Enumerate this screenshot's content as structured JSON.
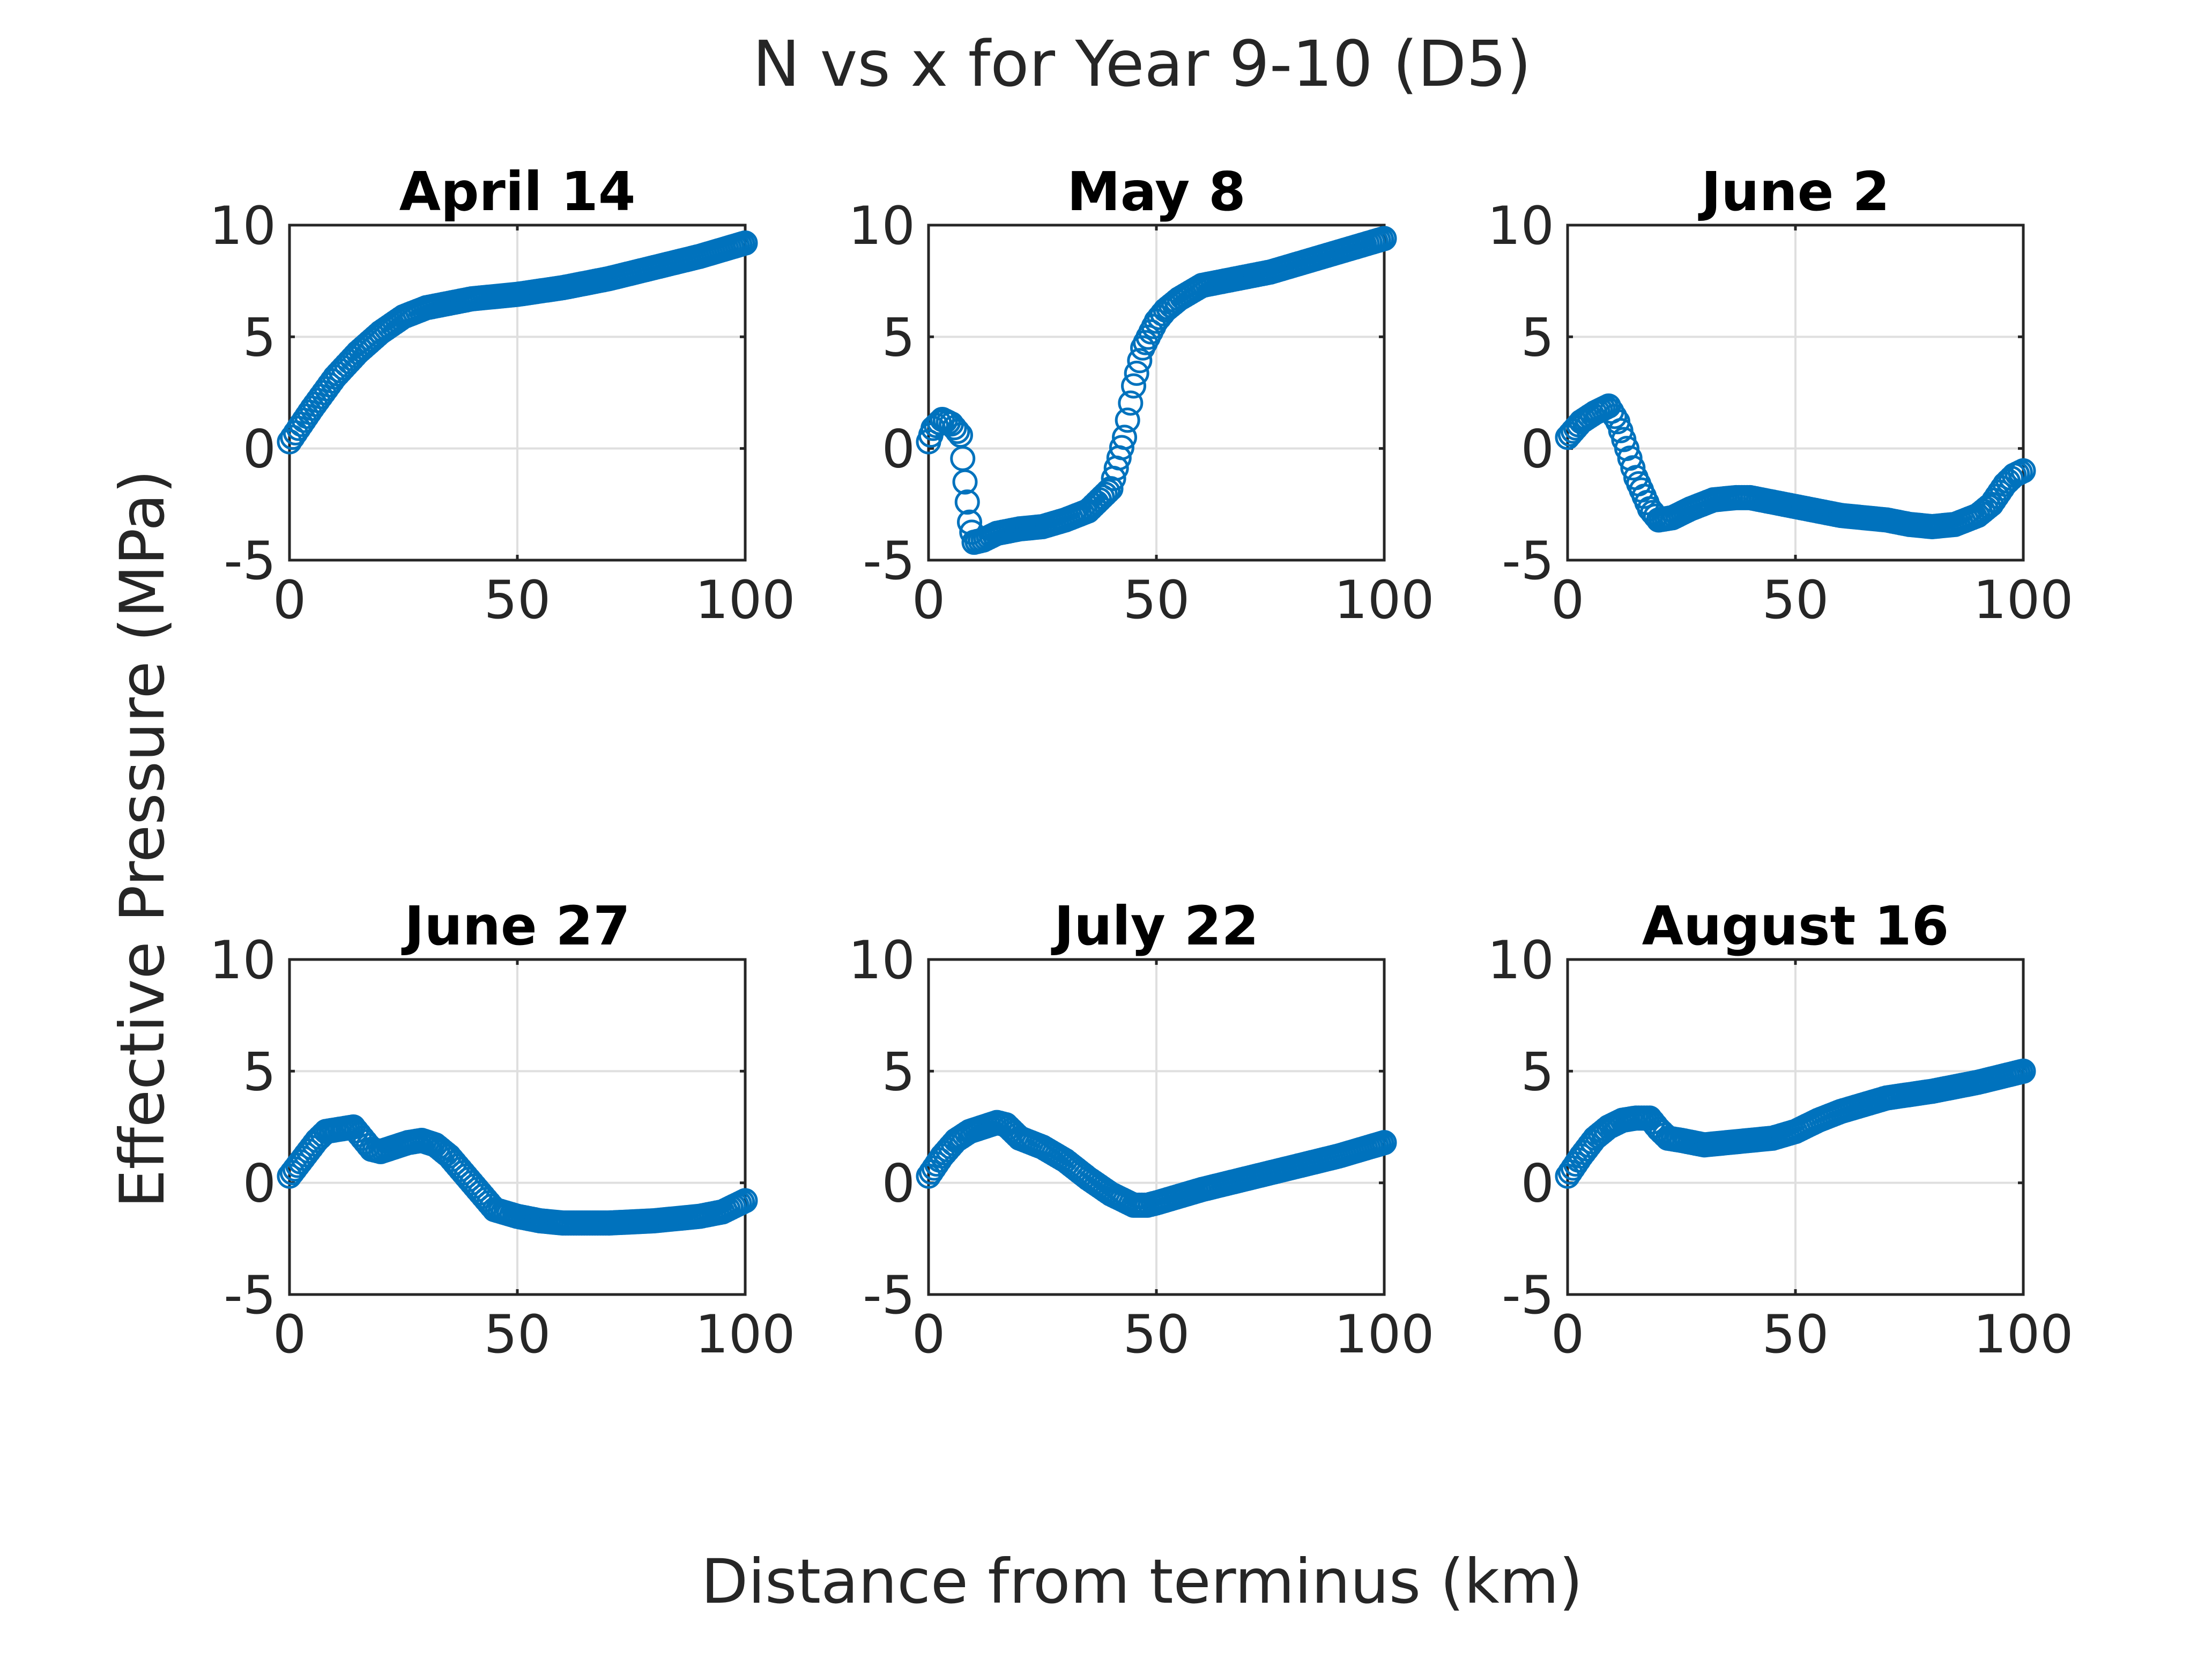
{
  "figure": {
    "suptitle": "N vs x for Year 9-10 (D5)",
    "xlabel": "Distance from terminus (km)",
    "ylabel": "Effective Pressure (MPa)"
  },
  "colors": {
    "series": "#0072BD"
  },
  "chart_data": [
    {
      "type": "scatter",
      "title": "April 14",
      "xlim": [
        0,
        100
      ],
      "ylim": [
        -5,
        10
      ],
      "xticks": [
        0,
        50,
        100
      ],
      "yticks": [
        -5,
        0,
        5,
        10
      ],
      "xtick_labels": [
        "0",
        "50",
        "100"
      ],
      "ytick_labels": [
        "-5",
        "0",
        "5",
        "10"
      ],
      "grid": true,
      "series": [
        {
          "marker": "circle",
          "x": [
            0,
            2,
            5,
            10,
            15,
            20,
            25,
            30,
            35,
            40,
            50,
            60,
            70,
            80,
            90,
            100
          ],
          "y": [
            0.3,
            0.9,
            1.8,
            3.2,
            4.3,
            5.2,
            5.9,
            6.3,
            6.5,
            6.7,
            6.9,
            7.2,
            7.6,
            8.1,
            8.6,
            9.2
          ]
        }
      ]
    },
    {
      "type": "scatter",
      "title": "May 8",
      "xlim": [
        0,
        100
      ],
      "ylim": [
        -5,
        10
      ],
      "xticks": [
        0,
        50,
        100
      ],
      "yticks": [
        -5,
        0,
        5,
        10
      ],
      "xtick_labels": [
        "0",
        "50",
        "100"
      ],
      "ytick_labels": [
        "-5",
        "0",
        "5",
        "10"
      ],
      "grid": true,
      "series": [
        {
          "marker": "circle",
          "x": [
            0,
            1,
            3,
            5,
            7,
            8,
            9,
            10,
            12,
            15,
            20,
            25,
            30,
            35,
            40,
            43,
            45,
            47,
            50,
            52,
            55,
            60,
            65,
            70,
            75,
            80,
            85,
            90,
            95,
            100
          ],
          "y": [
            0.3,
            0.9,
            1.3,
            1.1,
            0.6,
            -1.5,
            -3.3,
            -4.2,
            -4.1,
            -3.8,
            -3.6,
            -3.5,
            -3.2,
            -2.8,
            -1.8,
            0.5,
            2.8,
            4.5,
            5.7,
            6.2,
            6.7,
            7.3,
            7.5,
            7.7,
            7.9,
            8.2,
            8.5,
            8.8,
            9.1,
            9.4
          ]
        }
      ]
    },
    {
      "type": "scatter",
      "title": "June 2",
      "xlim": [
        0,
        100
      ],
      "ylim": [
        -5,
        10
      ],
      "xticks": [
        0,
        50,
        100
      ],
      "yticks": [
        -5,
        0,
        5,
        10
      ],
      "xtick_labels": [
        "0",
        "50",
        "100"
      ],
      "ytick_labels": [
        "-5",
        "0",
        "5",
        "10"
      ],
      "grid": true,
      "series": [
        {
          "marker": "circle",
          "x": [
            0,
            3,
            6,
            9,
            11,
            13,
            15,
            18,
            20,
            23,
            27,
            32,
            37,
            40,
            45,
            50,
            55,
            60,
            65,
            70,
            75,
            80,
            85,
            90,
            93,
            96,
            98,
            100
          ],
          "y": [
            0.5,
            1.2,
            1.6,
            1.9,
            1.2,
            0.0,
            -1.3,
            -2.7,
            -3.2,
            -3.1,
            -2.7,
            -2.3,
            -2.2,
            -2.2,
            -2.4,
            -2.6,
            -2.8,
            -3.0,
            -3.1,
            -3.2,
            -3.4,
            -3.5,
            -3.4,
            -3.0,
            -2.5,
            -1.6,
            -1.2,
            -1.0
          ]
        }
      ]
    },
    {
      "type": "scatter",
      "title": "June 27",
      "xlim": [
        0,
        100
      ],
      "ylim": [
        -5,
        10
      ],
      "xticks": [
        0,
        50,
        100
      ],
      "yticks": [
        -5,
        0,
        5,
        10
      ],
      "xtick_labels": [
        "0",
        "50",
        "100"
      ],
      "ytick_labels": [
        "-5",
        "0",
        "5",
        "10"
      ],
      "grid": true,
      "series": [
        {
          "marker": "circle",
          "x": [
            0,
            3,
            6,
            8,
            11,
            14,
            16,
            18,
            20,
            23,
            26,
            29,
            32,
            35,
            40,
            45,
            50,
            55,
            60,
            70,
            80,
            90,
            95,
            100
          ],
          "y": [
            0.3,
            1.1,
            1.9,
            2.3,
            2.4,
            2.5,
            2.0,
            1.5,
            1.4,
            1.6,
            1.8,
            1.9,
            1.7,
            1.2,
            0.0,
            -1.2,
            -1.5,
            -1.7,
            -1.8,
            -1.8,
            -1.7,
            -1.5,
            -1.3,
            -0.8
          ]
        }
      ]
    },
    {
      "type": "scatter",
      "title": "July 22",
      "xlim": [
        0,
        100
      ],
      "ylim": [
        -5,
        10
      ],
      "xticks": [
        0,
        50,
        100
      ],
      "yticks": [
        -5,
        0,
        5,
        10
      ],
      "xtick_labels": [
        "0",
        "50",
        "100"
      ],
      "ytick_labels": [
        "-5",
        "0",
        "5",
        "10"
      ],
      "grid": true,
      "series": [
        {
          "marker": "circle",
          "x": [
            0,
            3,
            6,
            9,
            12,
            15,
            17,
            20,
            25,
            30,
            35,
            40,
            45,
            48,
            50,
            55,
            60,
            70,
            80,
            90,
            100
          ],
          "y": [
            0.3,
            1.2,
            1.9,
            2.3,
            2.5,
            2.7,
            2.6,
            2.0,
            1.6,
            1.0,
            0.2,
            -0.5,
            -1.0,
            -1.0,
            -0.9,
            -0.6,
            -0.3,
            0.2,
            0.7,
            1.2,
            1.8
          ]
        }
      ]
    },
    {
      "type": "scatter",
      "title": "August 16",
      "xlim": [
        0,
        100
      ],
      "ylim": [
        -5,
        10
      ],
      "xticks": [
        0,
        50,
        100
      ],
      "yticks": [
        -5,
        0,
        5,
        10
      ],
      "xtick_labels": [
        "0",
        "50",
        "100"
      ],
      "ytick_labels": [
        "-5",
        "0",
        "5",
        "10"
      ],
      "grid": true,
      "series": [
        {
          "marker": "circle",
          "x": [
            0,
            3,
            6,
            9,
            12,
            15,
            18,
            20,
            22,
            25,
            30,
            35,
            40,
            45,
            50,
            55,
            60,
            65,
            70,
            80,
            90,
            100
          ],
          "y": [
            0.3,
            1.2,
            2.0,
            2.5,
            2.8,
            2.9,
            2.9,
            2.4,
            2.0,
            1.9,
            1.7,
            1.8,
            1.9,
            2.0,
            2.3,
            2.8,
            3.2,
            3.5,
            3.8,
            4.1,
            4.5,
            5.0
          ]
        }
      ]
    }
  ]
}
